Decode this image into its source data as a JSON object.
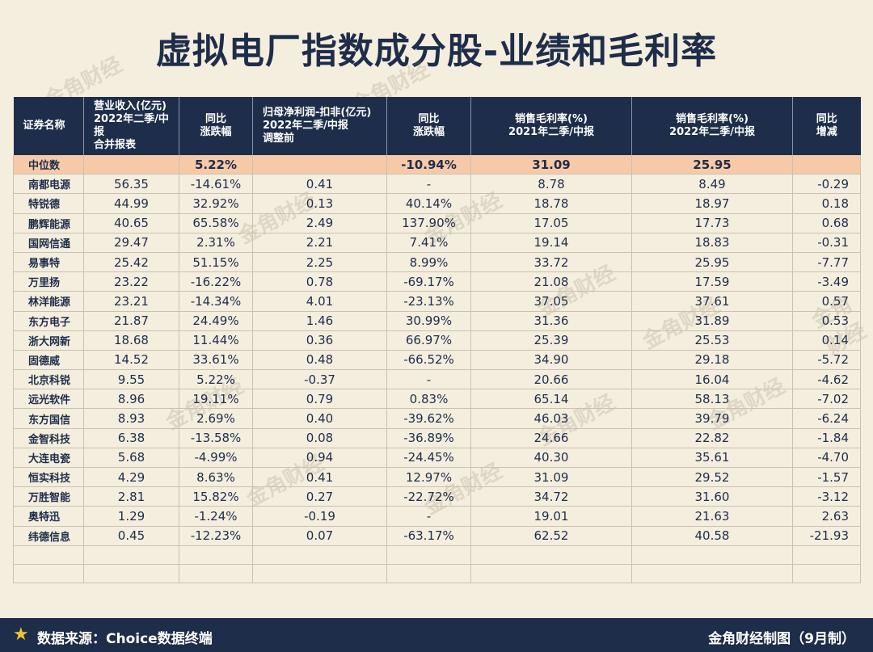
{
  "title": "虚拟电厂指数成分股-业绩和毛利率",
  "headers": {
    "name": "证券名称",
    "revenue": [
      "营业收入(亿元)",
      "2022年二季/中报",
      "合并报表"
    ],
    "rev_yoy": [
      "同比",
      "涨跌幅"
    ],
    "profit": [
      "归母净利润-扣非(亿元)",
      "2022年二季/中报",
      "调整前"
    ],
    "profit_yoy": [
      "同比",
      "涨跌幅"
    ],
    "gm2021": [
      "销售毛利率(%)",
      "2021年二季/中报"
    ],
    "gm2022": [
      "销售毛利率(%)",
      "2022年二季/中报"
    ],
    "gm_change": [
      "同比",
      "增减"
    ]
  },
  "median": {
    "name": "中位数",
    "revenue": "",
    "rev_yoy": "5.22%",
    "profit": "",
    "profit_yoy": "-10.94%",
    "gm2021": "31.09",
    "gm2022": "25.95",
    "gm_change": ""
  },
  "rows": [
    {
      "name": "南都电源",
      "revenue": "56.35",
      "rev_yoy": "-14.61%",
      "profit": "0.41",
      "profit_yoy": "-",
      "gm2021": "8.78",
      "gm2022": "8.49",
      "gm_change": "-0.29"
    },
    {
      "name": "特锐德",
      "revenue": "44.99",
      "rev_yoy": "32.92%",
      "profit": "0.13",
      "profit_yoy": "40.14%",
      "gm2021": "18.78",
      "gm2022": "18.97",
      "gm_change": "0.18"
    },
    {
      "name": "鹏辉能源",
      "revenue": "40.65",
      "rev_yoy": "65.58%",
      "profit": "2.49",
      "profit_yoy": "137.90%",
      "gm2021": "17.05",
      "gm2022": "17.73",
      "gm_change": "0.68"
    },
    {
      "name": "国网信通",
      "revenue": "29.47",
      "rev_yoy": "2.31%",
      "profit": "2.21",
      "profit_yoy": "7.41%",
      "gm2021": "19.14",
      "gm2022": "18.83",
      "gm_change": "-0.31"
    },
    {
      "name": "易事特",
      "revenue": "25.42",
      "rev_yoy": "51.15%",
      "profit": "2.25",
      "profit_yoy": "8.99%",
      "gm2021": "33.72",
      "gm2022": "25.95",
      "gm_change": "-7.77"
    },
    {
      "name": "万里扬",
      "revenue": "23.22",
      "rev_yoy": "-16.22%",
      "profit": "0.78",
      "profit_yoy": "-69.17%",
      "gm2021": "21.08",
      "gm2022": "17.59",
      "gm_change": "-3.49"
    },
    {
      "name": "林洋能源",
      "revenue": "23.21",
      "rev_yoy": "-14.34%",
      "profit": "4.01",
      "profit_yoy": "-23.13%",
      "gm2021": "37.05",
      "gm2022": "37.61",
      "gm_change": "0.57"
    },
    {
      "name": "东方电子",
      "revenue": "21.87",
      "rev_yoy": "24.49%",
      "profit": "1.46",
      "profit_yoy": "30.99%",
      "gm2021": "31.36",
      "gm2022": "31.89",
      "gm_change": "0.53"
    },
    {
      "name": "浙大网新",
      "revenue": "18.68",
      "rev_yoy": "11.44%",
      "profit": "0.36",
      "profit_yoy": "66.97%",
      "gm2021": "25.39",
      "gm2022": "25.53",
      "gm_change": "0.14"
    },
    {
      "name": "固德威",
      "revenue": "14.52",
      "rev_yoy": "33.61%",
      "profit": "0.48",
      "profit_yoy": "-66.52%",
      "gm2021": "34.90",
      "gm2022": "29.18",
      "gm_change": "-5.72"
    },
    {
      "name": "北京科锐",
      "revenue": "9.55",
      "rev_yoy": "5.22%",
      "profit": "-0.37",
      "profit_yoy": "-",
      "gm2021": "20.66",
      "gm2022": "16.04",
      "gm_change": "-4.62"
    },
    {
      "name": "远光软件",
      "revenue": "8.96",
      "rev_yoy": "19.11%",
      "profit": "0.79",
      "profit_yoy": "0.83%",
      "gm2021": "65.14",
      "gm2022": "58.13",
      "gm_change": "-7.02"
    },
    {
      "name": "东方国信",
      "revenue": "8.93",
      "rev_yoy": "2.69%",
      "profit": "0.40",
      "profit_yoy": "-39.62%",
      "gm2021": "46.03",
      "gm2022": "39.79",
      "gm_change": "-6.24"
    },
    {
      "name": "金智科技",
      "revenue": "6.38",
      "rev_yoy": "-13.58%",
      "profit": "0.08",
      "profit_yoy": "-36.89%",
      "gm2021": "24.66",
      "gm2022": "22.82",
      "gm_change": "-1.84"
    },
    {
      "name": "大连电瓷",
      "revenue": "5.68",
      "rev_yoy": "-4.99%",
      "profit": "0.94",
      "profit_yoy": "-24.45%",
      "gm2021": "40.30",
      "gm2022": "35.61",
      "gm_change": "-4.70"
    },
    {
      "name": "恒实科技",
      "revenue": "4.29",
      "rev_yoy": "8.63%",
      "profit": "0.41",
      "profit_yoy": "12.97%",
      "gm2021": "31.09",
      "gm2022": "29.52",
      "gm_change": "-1.57"
    },
    {
      "name": "万胜智能",
      "revenue": "2.81",
      "rev_yoy": "15.82%",
      "profit": "0.27",
      "profit_yoy": "-22.72%",
      "gm2021": "34.72",
      "gm2022": "31.60",
      "gm_change": "-3.12"
    },
    {
      "name": "奥特迅",
      "revenue": "1.29",
      "rev_yoy": "-1.24%",
      "profit": "-0.19",
      "profit_yoy": "-",
      "gm2021": "19.01",
      "gm2022": "21.63",
      "gm_change": "2.63"
    },
    {
      "name": "纬德信息",
      "revenue": "0.45",
      "rev_yoy": "-12.23%",
      "profit": "0.07",
      "profit_yoy": "-63.17%",
      "gm2021": "62.52",
      "gm2022": "40.58",
      "gm_change": "-21.93"
    }
  ],
  "blank_rows": 2,
  "watermark_text": "金角财经",
  "footer": {
    "icon": "star-icon",
    "source": "数据来源：Choice数据终端",
    "credit": "金角财经制图（9月制）"
  },
  "colors": {
    "navy": "#1e2d49",
    "cream": "#f4eedf",
    "median_row": "#f6c9a8",
    "star": "#f1c233"
  }
}
